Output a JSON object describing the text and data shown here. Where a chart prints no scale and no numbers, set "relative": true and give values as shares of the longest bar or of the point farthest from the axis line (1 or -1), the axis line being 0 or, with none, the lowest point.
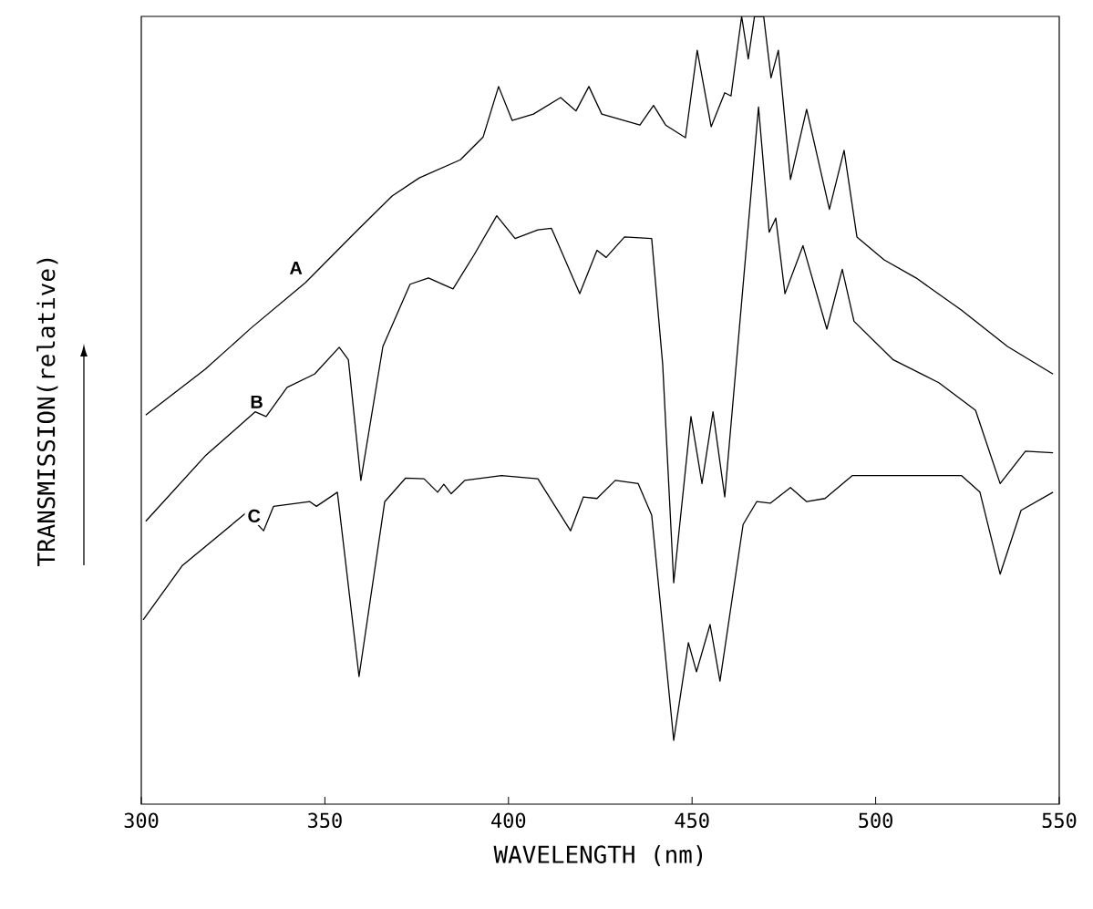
{
  "chart_data": {
    "type": "line",
    "xlabel": "WAVELENGTH (nm)",
    "ylabel": "TRANSMISSION(relative)",
    "relative": true,
    "xlim": [
      300,
      550
    ],
    "xticks": [
      300,
      350,
      400,
      450,
      500,
      550
    ],
    "grid": false,
    "marker": "none",
    "line_style": "solid",
    "series": [
      {
        "name": "A",
        "color": "#000000",
        "x": [
          301.2,
          317.4,
          329.8,
          344.7,
          358.3,
          368.3,
          375.7,
          386.9,
          393.1,
          397.3,
          401.0,
          406.8,
          414.2,
          418.4,
          421.9,
          425.4,
          435.8,
          439.5,
          442.8,
          448.2,
          451.4,
          455.2,
          458.9,
          460.6,
          463.5,
          465.3,
          467.0,
          469.5,
          471.5,
          473.5,
          476.8,
          481.2,
          487.4,
          491.4,
          494.9,
          502.3,
          511.0,
          523.4,
          535.9,
          548.3
        ],
        "values": [
          0.494,
          0.552,
          0.604,
          0.662,
          0.726,
          0.772,
          0.795,
          0.818,
          0.847,
          0.911,
          0.868,
          0.876,
          0.897,
          0.88,
          0.911,
          0.876,
          0.862,
          0.887,
          0.862,
          0.846,
          0.957,
          0.86,
          0.903,
          0.899,
          1.0,
          0.946,
          1.0,
          1.0,
          0.922,
          0.957,
          0.793,
          0.882,
          0.755,
          0.83,
          0.72,
          0.691,
          0.668,
          0.627,
          0.581,
          0.546
        ]
      },
      {
        "name": "B",
        "color": "#000000",
        "x": [
          301.2,
          317.4,
          331.0,
          334.0,
          339.7,
          347.2,
          353.9,
          356.4,
          359.8,
          365.8,
          373.2,
          378.2,
          384.9,
          390.6,
          396.8,
          401.8,
          408.0,
          411.7,
          419.4,
          424.1,
          426.6,
          431.6,
          439.0,
          442.0,
          445.0,
          449.7,
          452.7,
          455.7,
          458.9,
          468.1,
          471.0,
          472.8,
          475.3,
          480.2,
          486.7,
          490.9,
          494.1,
          504.8,
          517.2,
          527.2,
          533.9,
          540.8,
          548.3
        ],
        "values": [
          0.359,
          0.442,
          0.498,
          0.492,
          0.529,
          0.546,
          0.58,
          0.564,
          0.411,
          0.581,
          0.66,
          0.668,
          0.654,
          0.697,
          0.747,
          0.718,
          0.729,
          0.731,
          0.648,
          0.703,
          0.694,
          0.72,
          0.718,
          0.558,
          0.281,
          0.492,
          0.407,
          0.498,
          0.39,
          0.885,
          0.726,
          0.744,
          0.648,
          0.709,
          0.603,
          0.679,
          0.613,
          0.564,
          0.535,
          0.5,
          0.407,
          0.448,
          0.446
        ]
      },
      {
        "name": "C",
        "color": "#000000",
        "x": [
          300.5,
          311.2,
          328.6,
          333.3,
          336.0,
          345.9,
          347.7,
          353.4,
          359.3,
          366.3,
          372.0,
          377.0,
          380.7,
          382.4,
          384.4,
          388.1,
          398.1,
          408.0,
          416.9,
          420.4,
          424.1,
          429.1,
          435.3,
          439.0,
          445.0,
          449.0,
          451.2,
          454.9,
          457.6,
          463.9,
          467.6,
          471.3,
          476.8,
          481.2,
          486.2,
          493.6,
          523.4,
          528.4,
          533.9,
          539.6,
          548.3
        ],
        "values": [
          0.234,
          0.303,
          0.37,
          0.347,
          0.378,
          0.384,
          0.378,
          0.396,
          0.162,
          0.384,
          0.414,
          0.413,
          0.396,
          0.406,
          0.394,
          0.411,
          0.417,
          0.413,
          0.347,
          0.39,
          0.388,
          0.411,
          0.407,
          0.367,
          0.081,
          0.205,
          0.168,
          0.228,
          0.156,
          0.355,
          0.384,
          0.382,
          0.402,
          0.384,
          0.388,
          0.417,
          0.417,
          0.396,
          0.292,
          0.373,
          0.396
        ]
      }
    ]
  }
}
